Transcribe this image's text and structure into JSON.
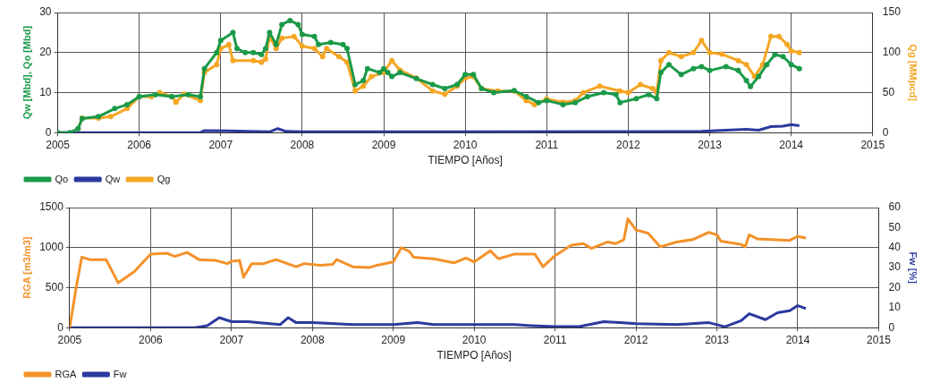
{
  "chart_data": [
    {
      "type": "line",
      "xlabel": "TIEMPO [Años]",
      "ylabel": "Qw [Mbd], Qo [Mbd]",
      "y2label": "Qg [MMpcd]",
      "xlim": [
        2005,
        2015
      ],
      "xticks": [
        2005,
        2006,
        2007,
        2008,
        2009,
        2010,
        2011,
        2012,
        2013,
        2014,
        2015
      ],
      "ylim": [
        0,
        30
      ],
      "yticks": [
        0,
        10,
        20,
        30
      ],
      "y2lim": [
        0,
        150
      ],
      "y2ticks": [
        0,
        50,
        100,
        150
      ],
      "grid": true,
      "legend": "bottom left",
      "series": [
        {
          "name": "Qo",
          "color": "#1a9a48",
          "marker": "circle",
          "x": [
            2005.0,
            2005.15,
            2005.25,
            2005.3,
            2005.5,
            2005.7,
            2005.85,
            2006.0,
            2006.2,
            2006.4,
            2006.6,
            2006.75,
            2006.8,
            2006.95,
            2007.0,
            2007.15,
            2007.2,
            2007.3,
            2007.4,
            2007.5,
            2007.55,
            2007.6,
            2007.68,
            2007.75,
            2007.85,
            2007.95,
            2008.0,
            2008.15,
            2008.2,
            2008.35,
            2008.5,
            2008.55,
            2008.65,
            2008.75,
            2008.8,
            2008.95,
            2009.0,
            2009.05,
            2009.1,
            2009.2,
            2009.4,
            2009.6,
            2009.75,
            2009.9,
            2010.0,
            2010.1,
            2010.2,
            2010.35,
            2010.6,
            2010.75,
            2010.9,
            2011.0,
            2011.2,
            2011.35,
            2011.5,
            2011.7,
            2011.85,
            2011.9,
            2012.1,
            2012.25,
            2012.35,
            2012.4,
            2012.5,
            2012.65,
            2012.8,
            2012.9,
            2013.0,
            2013.2,
            2013.35,
            2013.45,
            2013.5,
            2013.6,
            2013.7,
            2013.8,
            2013.9,
            2014.0,
            2014.1
          ],
          "values": [
            0,
            0,
            1,
            3.5,
            4,
            6,
            7,
            9,
            9.5,
            9,
            9.5,
            9,
            16,
            20,
            23,
            25,
            21,
            20,
            20,
            19.5,
            21,
            25,
            22,
            27,
            28,
            27,
            24.5,
            24,
            22,
            22.5,
            22,
            21,
            12,
            13,
            16,
            15,
            16,
            15,
            14,
            15,
            13.5,
            12,
            11,
            12,
            14.5,
            14.5,
            11,
            10,
            10.5,
            9,
            7.5,
            8,
            7,
            7.5,
            9,
            10,
            9.5,
            7.5,
            8.5,
            9.5,
            8.5,
            15,
            17,
            14.5,
            16,
            16.5,
            15.5,
            16.5,
            15.5,
            13,
            11.5,
            14,
            17,
            19.5,
            19,
            17,
            16
          ]
        },
        {
          "name": "Qw",
          "color": "#2b3a9e",
          "marker": "none",
          "x": [
            2005.0,
            2006.75,
            2006.8,
            2007.2,
            2007.6,
            2007.7,
            2007.8,
            2008.0,
            2012.9,
            2013.2,
            2013.45,
            2013.6,
            2013.75,
            2013.9,
            2014.0,
            2014.1
          ],
          "values": [
            0,
            0,
            0.5,
            0.4,
            0.2,
            1,
            0.3,
            0.2,
            0.3,
            0.6,
            0.8,
            0.6,
            1.5,
            1.6,
            2,
            1.7
          ]
        },
        {
          "name": "Qg",
          "color": "#f5a623",
          "marker": "circle",
          "axis": "y2",
          "x": [
            2005.25,
            2005.3,
            2005.5,
            2005.65,
            2005.85,
            2006.0,
            2006.15,
            2006.25,
            2006.4,
            2006.45,
            2006.55,
            2006.75,
            2006.8,
            2006.95,
            2007.0,
            2007.1,
            2007.15,
            2007.4,
            2007.5,
            2007.55,
            2007.6,
            2007.68,
            2007.75,
            2007.9,
            2008.0,
            2008.15,
            2008.25,
            2008.3,
            2008.45,
            2008.55,
            2008.65,
            2008.75,
            2008.85,
            2009.0,
            2009.1,
            2009.2,
            2009.4,
            2009.6,
            2009.75,
            2009.9,
            2010.0,
            2010.1,
            2010.2,
            2010.4,
            2010.6,
            2010.75,
            2010.85,
            2011.0,
            2011.2,
            2011.35,
            2011.45,
            2011.65,
            2011.9,
            2012.0,
            2012.15,
            2012.3,
            2012.35,
            2012.4,
            2012.5,
            2012.65,
            2012.8,
            2012.9,
            2013.0,
            2013.15,
            2013.35,
            2013.45,
            2013.55,
            2013.65,
            2013.75,
            2013.85,
            2013.95,
            2014.0,
            2014.1
          ],
          "values": [
            5,
            18,
            18,
            20,
            30,
            45,
            45,
            50,
            45,
            38,
            48,
            40,
            75,
            85,
            105,
            110,
            90,
            90,
            88,
            92,
            120,
            105,
            118,
            120,
            108,
            105,
            95,
            105,
            95,
            88,
            52,
            58,
            70,
            75,
            90,
            78,
            68,
            52,
            48,
            58,
            68,
            70,
            55,
            52,
            52,
            40,
            35,
            42,
            38,
            40,
            50,
            58,
            52,
            50,
            60,
            55,
            50,
            90,
            100,
            95,
            100,
            115,
            100,
            98,
            90,
            85,
            70,
            85,
            120,
            120,
            110,
            102,
            100
          ]
        }
      ]
    },
    {
      "type": "line",
      "xlabel": "TIEMPO [Años]",
      "ylabel": "RGA [m3/m3]",
      "y2label": "Fw [%]",
      "xlim": [
        2005,
        2015
      ],
      "xticks": [
        2005,
        2006,
        2007,
        2008,
        2009,
        2010,
        2011,
        2012,
        2013,
        2014,
        2015
      ],
      "ylim": [
        0,
        1500
      ],
      "yticks": [
        0,
        500,
        1000,
        1500
      ],
      "y2lim": [
        0,
        60
      ],
      "y2ticks": [
        0,
        10,
        20,
        30,
        40,
        50,
        60
      ],
      "grid": true,
      "legend": "bottom left",
      "series": [
        {
          "name": "RGA",
          "color": "#f39229",
          "marker": "none",
          "x": [
            2005.0,
            2005.08,
            2005.15,
            2005.25,
            2005.45,
            2005.6,
            2005.8,
            2006.0,
            2006.2,
            2006.3,
            2006.45,
            2006.6,
            2006.8,
            2006.95,
            2007.0,
            2007.1,
            2007.15,
            2007.25,
            2007.4,
            2007.55,
            2007.8,
            2007.9,
            2008.1,
            2008.25,
            2008.3,
            2008.5,
            2008.7,
            2008.8,
            2009.0,
            2009.1,
            2009.2,
            2009.25,
            2009.5,
            2009.75,
            2009.9,
            2010.0,
            2010.2,
            2010.3,
            2010.5,
            2010.75,
            2010.85,
            2011.0,
            2011.2,
            2011.35,
            2011.45,
            2011.65,
            2011.75,
            2011.85,
            2011.9,
            2012.0,
            2012.15,
            2012.3,
            2012.5,
            2012.7,
            2012.9,
            2013.0,
            2013.05,
            2013.3,
            2013.35,
            2013.4,
            2013.5,
            2013.9,
            2014.0,
            2014.1
          ],
          "values": [
            0,
            500,
            880,
            850,
            850,
            560,
            700,
            920,
            930,
            890,
            940,
            850,
            840,
            800,
            830,
            840,
            630,
            800,
            800,
            850,
            760,
            800,
            780,
            790,
            850,
            760,
            750,
            780,
            820,
            1000,
            950,
            880,
            860,
            810,
            870,
            820,
            960,
            860,
            920,
            920,
            760,
            900,
            1030,
            1050,
            990,
            1070,
            1050,
            1100,
            1360,
            1220,
            1180,
            1010,
            1070,
            1100,
            1190,
            1160,
            1080,
            1040,
            1010,
            1160,
            1110,
            1090,
            1140,
            1120
          ]
        },
        {
          "name": "Fw",
          "color": "#2b3a9e",
          "marker": "none",
          "axis": "y2",
          "x": [
            2005.0,
            2006.55,
            2006.7,
            2006.85,
            2007.0,
            2007.2,
            2007.6,
            2007.7,
            2007.8,
            2008.0,
            2008.5,
            2009.0,
            2009.3,
            2009.5,
            2010.0,
            2010.5,
            2010.7,
            2011.0,
            2011.3,
            2011.6,
            2011.8,
            2012.0,
            2012.5,
            2012.9,
            2013.1,
            2013.3,
            2013.4,
            2013.6,
            2013.75,
            2013.9,
            2014.0,
            2014.1
          ],
          "values": [
            0,
            0,
            1,
            5,
            3,
            3,
            1.5,
            5,
            2.5,
            2.5,
            1.5,
            1.5,
            2.5,
            1.5,
            1.5,
            1.5,
            1,
            0.5,
            0.5,
            3,
            2.5,
            2,
            1.5,
            2.5,
            0.5,
            3.5,
            7,
            4,
            7.5,
            8.5,
            11,
            9.5
          ]
        }
      ]
    }
  ]
}
